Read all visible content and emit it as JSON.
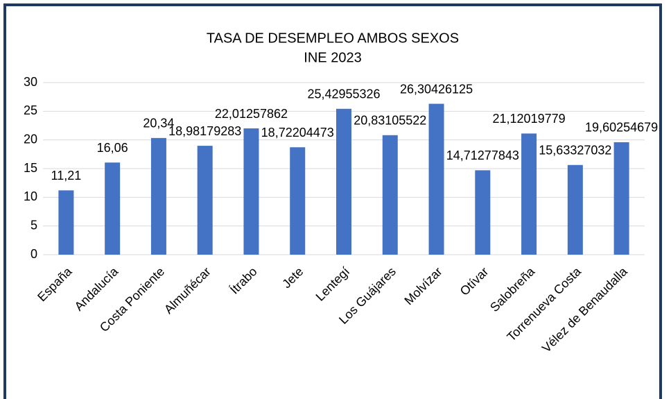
{
  "chart_data": {
    "type": "bar",
    "title": "TASA DE DESEMPLEO AMBOS SEXOS",
    "subtitle": "INE 2023",
    "categories": [
      "España",
      "Andalucía",
      "Costa Poniente",
      "Almuñécar",
      "Ítrabo",
      "Jete",
      "Lentegí",
      "Los Guájares",
      "Molvízar",
      "Otívar",
      "Salobreña",
      "Torrenueva Costa",
      "Vélez de Benaudalla"
    ],
    "values": [
      11.21,
      16.06,
      20.34,
      18.98179283,
      22.01257862,
      18.72204473,
      25.42955326,
      20.83105522,
      26.30426125,
      14.71277843,
      21.12019779,
      15.63327032,
      19.60254679
    ],
    "value_labels": [
      "11,21",
      "16,06",
      "20,34",
      "18,98179283",
      "22,01257862",
      "18,72204473",
      "25,42955326",
      "20,83105522",
      "26,30426125",
      "14,71277843",
      "21,12019779",
      "15,63327032",
      "19,60254679"
    ],
    "color": "#4472c4",
    "ylim": [
      0,
      30
    ],
    "yticks": [
      0,
      5,
      10,
      15,
      20,
      25,
      30
    ],
    "grid": true
  }
}
